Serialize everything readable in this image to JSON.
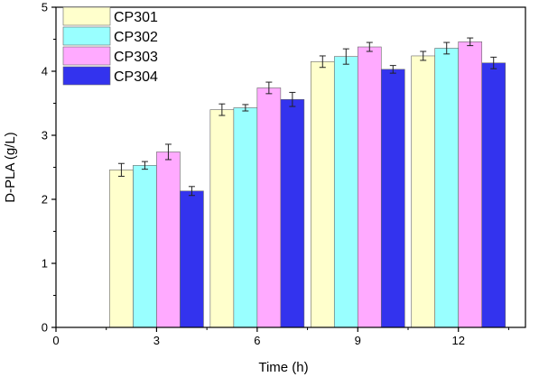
{
  "chart_data": {
    "type": "bar",
    "title": "",
    "xlabel": "Time (h)",
    "ylabel": "D-PLA (g/L)",
    "categories": [
      "3",
      "6",
      "9",
      "12"
    ],
    "xlim": [
      0,
      14
    ],
    "ylim": [
      0,
      5
    ],
    "xticks": [
      "0",
      "3",
      "6",
      "9",
      "12"
    ],
    "yticks": [
      "0",
      "1",
      "2",
      "3",
      "4",
      "5"
    ],
    "grid": false,
    "legend_position": "top-left",
    "series": [
      {
        "name": "CP301",
        "color": "#ffffcc",
        "values": [
          2.46,
          3.4,
          4.15,
          4.24
        ],
        "errors": [
          0.1,
          0.09,
          0.09,
          0.07
        ]
      },
      {
        "name": "CP302",
        "color": "#99ffff",
        "values": [
          2.53,
          3.43,
          4.23,
          4.36
        ],
        "errors": [
          0.06,
          0.05,
          0.12,
          0.09
        ]
      },
      {
        "name": "CP303",
        "color": "#ffaaff",
        "values": [
          2.74,
          3.74,
          4.38,
          4.46
        ],
        "errors": [
          0.12,
          0.09,
          0.07,
          0.06
        ]
      },
      {
        "name": "CP304",
        "color": "#3333ee",
        "values": [
          2.13,
          3.56,
          4.03,
          4.13
        ],
        "errors": [
          0.07,
          0.11,
          0.06,
          0.09
        ]
      }
    ]
  }
}
